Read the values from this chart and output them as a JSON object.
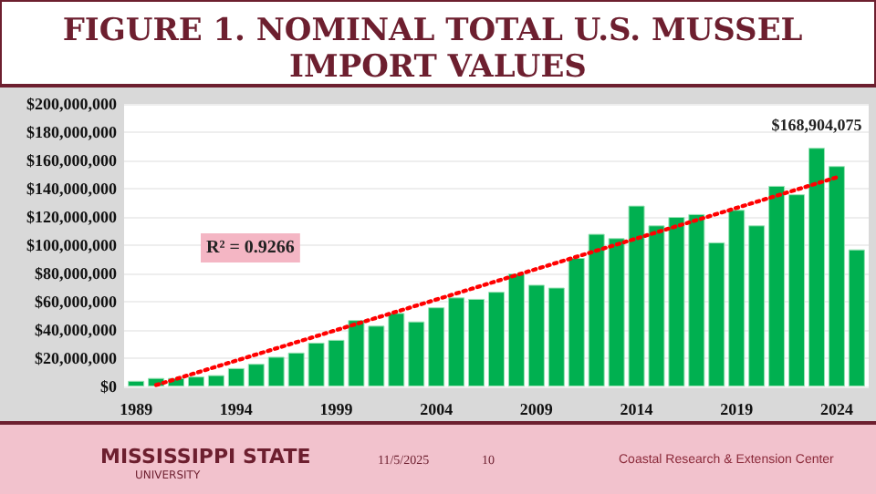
{
  "chart_data": {
    "type": "bar",
    "title": "FIGURE 1. NOMINAL TOTAL U.S. MUSSEL IMPORT VALUES",
    "x": [
      1989,
      1990,
      1991,
      1992,
      1993,
      1994,
      1995,
      1996,
      1997,
      1998,
      1999,
      2000,
      2001,
      2002,
      2003,
      2004,
      2005,
      2006,
      2007,
      2008,
      2009,
      2010,
      2011,
      2012,
      2013,
      2014,
      2015,
      2016,
      2017,
      2018,
      2019,
      2020,
      2021,
      2022,
      2023,
      2024,
      2025
    ],
    "xlim": [
      1988.4,
      2025.6
    ],
    "xticks": [
      1989,
      1994,
      1999,
      2004,
      2009,
      2014,
      2019,
      2024
    ],
    "ylim": [
      0,
      200000000
    ],
    "yticks": [
      {
        "value": 0,
        "label": "$0"
      },
      {
        "value": 20000000,
        "label": "$20,000,000"
      },
      {
        "value": 40000000,
        "label": "$40,000,000"
      },
      {
        "value": 60000000,
        "label": "$60,000,000"
      },
      {
        "value": 80000000,
        "label": "$80,000,000"
      },
      {
        "value": 100000000,
        "label": "$100,000,000"
      },
      {
        "value": 120000000,
        "label": "$120,000,000"
      },
      {
        "value": 140000000,
        "label": "$140,000,000"
      },
      {
        "value": 160000000,
        "label": "$160,000,000"
      },
      {
        "value": 180000000,
        "label": "$180,000,000"
      },
      {
        "value": 200000000,
        "label": "$200,000,000"
      }
    ],
    "grid": "y",
    "series": [
      {
        "color": "#00b050",
        "values": [
          4000000,
          6000000,
          6000000,
          7000000,
          8000000,
          13000000,
          16000000,
          21000000,
          24000000,
          31000000,
          33000000,
          47000000,
          43000000,
          52000000,
          46000000,
          56000000,
          63000000,
          62000000,
          67000000,
          80000000,
          72000000,
          70000000,
          91000000,
          108000000,
          105000000,
          128000000,
          114000000,
          120000000,
          122000000,
          102000000,
          125000000,
          114000000,
          142000000,
          136000000,
          168904075,
          156000000,
          97000000
        ],
        "value_labels": [
          null,
          null,
          null,
          null,
          null,
          null,
          null,
          null,
          null,
          null,
          null,
          null,
          null,
          null,
          null,
          null,
          null,
          null,
          null,
          null,
          null,
          null,
          null,
          null,
          null,
          null,
          null,
          null,
          null,
          null,
          null,
          null,
          null,
          null,
          "$168,904,075",
          null,
          null
        ]
      },
      {
        "type": "line",
        "color": "#ff0000",
        "line_style": "dotted",
        "marker": "none",
        "x": [
          1990,
          2024
        ],
        "values": [
          1000000,
          148000000
        ]
      }
    ],
    "annotations": [
      "R² = 0.9266",
      "MISSISSIPPI STATE",
      "UNIVERSITY",
      "11/5/2025",
      "10",
      "Coastal Research & Extension Center"
    ]
  }
}
